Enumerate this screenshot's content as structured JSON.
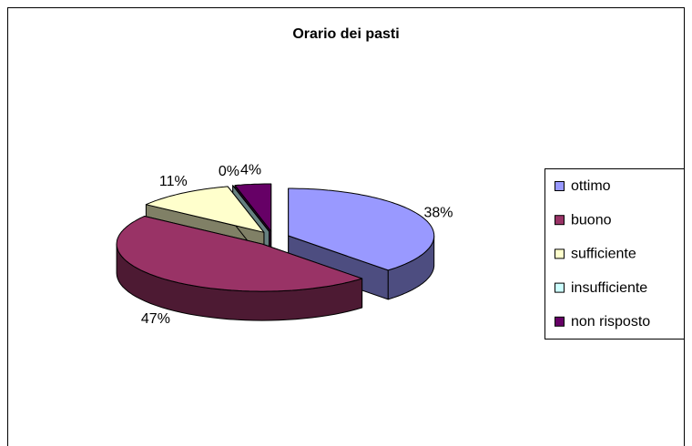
{
  "chart_data": {
    "type": "pie3d",
    "title": "Orario dei pasti",
    "categories": [
      "ottimo",
      "buono",
      "sufficiente",
      "insufficiente",
      "non risposto"
    ],
    "values": [
      38,
      47,
      11,
      0,
      4
    ],
    "value_labels": [
      "38%",
      "47%",
      "11%",
      "0%",
      "4%"
    ],
    "colors": [
      "#9999ff",
      "#993366",
      "#ffffcc",
      "#ccffff",
      "#660066"
    ],
    "legend": "right"
  }
}
